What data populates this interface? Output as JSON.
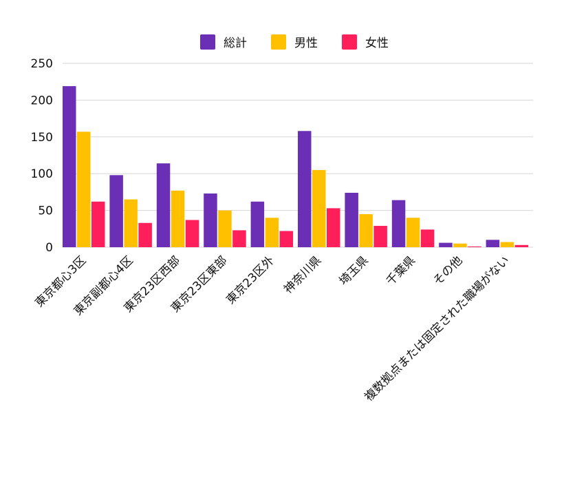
{
  "chart_data": {
    "type": "bar",
    "title": "",
    "xlabel": "",
    "ylabel": "",
    "ylim": [
      0,
      250
    ],
    "yticks": [
      0,
      50,
      100,
      150,
      200,
      250
    ],
    "grid": true,
    "legend_position": "top-center",
    "categories": [
      "東京都心3区",
      "東京副都心4区",
      "東京23区西部",
      "東京23区東部",
      "東京23区外",
      "神奈川県",
      "埼玉県",
      "千葉県",
      "その他",
      "複数拠点または固定された職場がない"
    ],
    "series": [
      {
        "name": "総計",
        "color": "#6a2fb5",
        "values": [
          219,
          98,
          114,
          73,
          62,
          158,
          74,
          64,
          6,
          10
        ]
      },
      {
        "name": "男性",
        "color": "#ffc000",
        "values": [
          157,
          65,
          77,
          50,
          40,
          105,
          45,
          40,
          5,
          7
        ]
      },
      {
        "name": "女性",
        "color": "#ff1f5a",
        "values": [
          62,
          33,
          37,
          23,
          22,
          53,
          29,
          24,
          1,
          3
        ]
      }
    ]
  }
}
